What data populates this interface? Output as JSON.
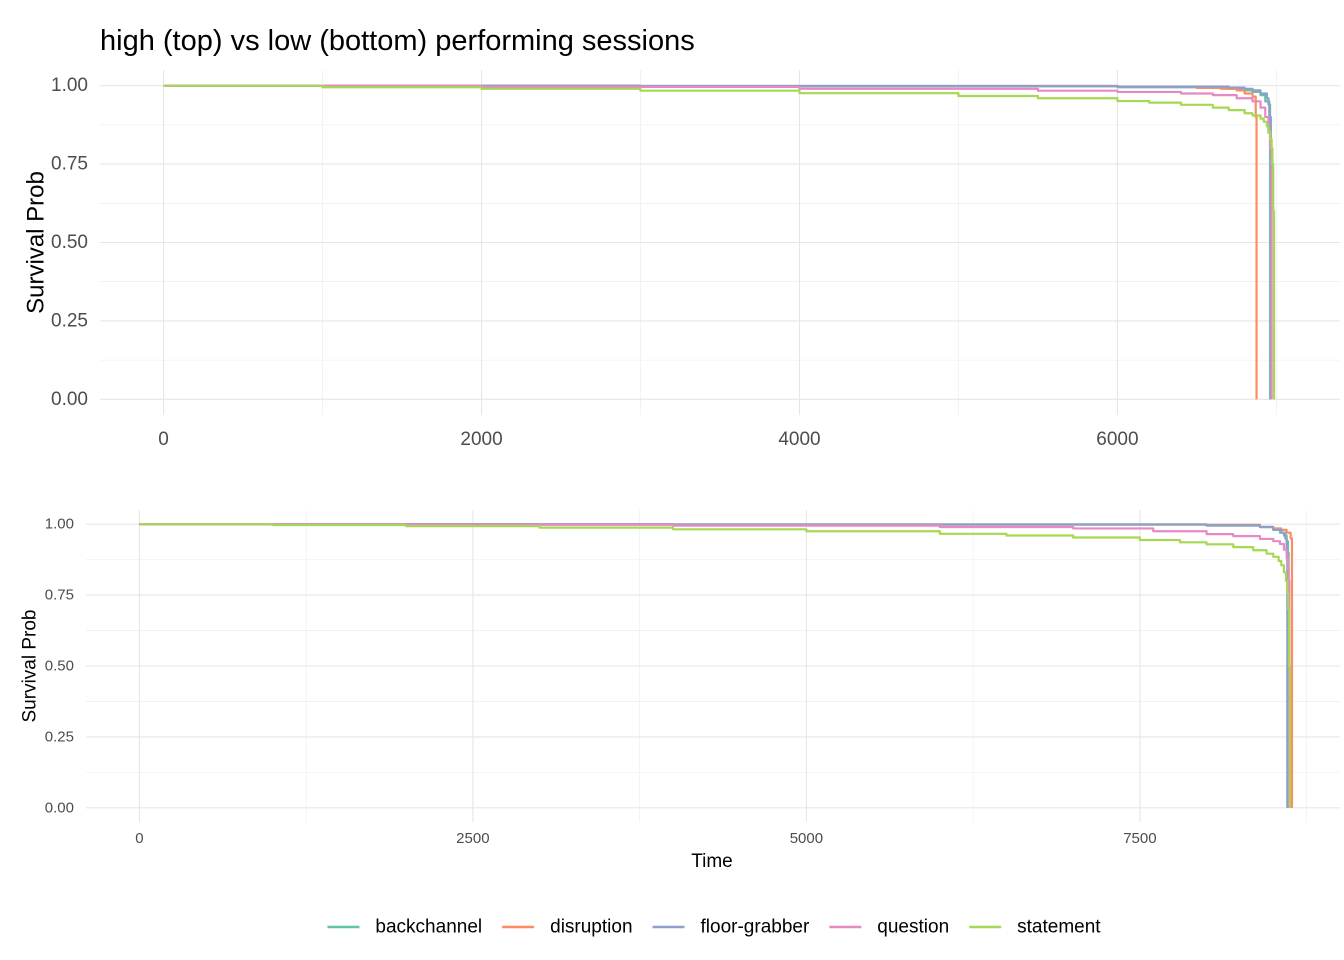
{
  "title": "high (top) vs low (bottom) performing sessions",
  "legend": {
    "items": [
      {
        "label": "backchannel",
        "color": "#66C2A5"
      },
      {
        "label": "disruption",
        "color": "#FC8D62"
      },
      {
        "label": "floor-grabber",
        "color": "#8DA0CB"
      },
      {
        "label": "question",
        "color": "#E78AC3"
      },
      {
        "label": "statement",
        "color": "#A6D854"
      }
    ]
  },
  "chart_data": [
    {
      "type": "line",
      "panel": "top",
      "xlabel": "",
      "ylabel": "Survival Prob",
      "xlim": [
        -400,
        7400
      ],
      "ylim": [
        -0.05,
        1.05
      ],
      "x_ticks": [
        0,
        2000,
        4000,
        6000
      ],
      "x_tick_labels": [
        "0",
        "2000",
        "4000",
        "6000"
      ],
      "y_ticks": [
        0,
        0.25,
        0.5,
        0.75,
        1.0
      ],
      "y_tick_labels": [
        "0.00",
        "0.25",
        "0.50",
        "0.75",
        "1.00"
      ],
      "grid": true,
      "step": true,
      "series": [
        {
          "name": "backchannel",
          "color": "#66C2A5",
          "x": [
            0,
            3000,
            6000,
            6650,
            6700,
            6800,
            6850,
            6900,
            6930,
            6955,
            6960
          ],
          "y": [
            1.0,
            0.998,
            0.995,
            0.992,
            0.99,
            0.985,
            0.98,
            0.97,
            0.95,
            0.9,
            0.0
          ]
        },
        {
          "name": "disruption",
          "color": "#FC8D62",
          "x": [
            0,
            3000,
            6000,
            6500,
            6650,
            6750,
            6800,
            6850,
            6870,
            6875
          ],
          "y": [
            1.0,
            0.999,
            0.997,
            0.993,
            0.99,
            0.985,
            0.975,
            0.965,
            0.9,
            0.0
          ]
        },
        {
          "name": "floor-grabber",
          "color": "#8DA0CB",
          "x": [
            0,
            3000,
            6000,
            6700,
            6800,
            6850,
            6900,
            6940,
            6950,
            6960,
            6965
          ],
          "y": [
            1.0,
            0.999,
            0.997,
            0.994,
            0.99,
            0.985,
            0.975,
            0.96,
            0.94,
            0.9,
            0.0
          ]
        },
        {
          "name": "question",
          "color": "#E78AC3",
          "x": [
            0,
            2000,
            4000,
            5500,
            6000,
            6400,
            6600,
            6750,
            6850,
            6900,
            6930,
            6950,
            6960,
            6970
          ],
          "y": [
            1.0,
            0.996,
            0.99,
            0.984,
            0.98,
            0.975,
            0.97,
            0.96,
            0.95,
            0.93,
            0.9,
            0.85,
            0.8,
            0.0
          ]
        },
        {
          "name": "statement",
          "color": "#A6D854",
          "x": [
            0,
            1000,
            2000,
            3000,
            4000,
            5000,
            5500,
            6000,
            6200,
            6400,
            6600,
            6700,
            6800,
            6850,
            6900,
            6920,
            6940,
            6950,
            6960,
            6970,
            6975,
            6980,
            6985
          ],
          "y": [
            1.0,
            0.995,
            0.99,
            0.984,
            0.976,
            0.967,
            0.96,
            0.951,
            0.946,
            0.939,
            0.93,
            0.922,
            0.912,
            0.905,
            0.895,
            0.885,
            0.87,
            0.855,
            0.83,
            0.8,
            0.75,
            0.6,
            0.0
          ]
        }
      ]
    },
    {
      "type": "line",
      "panel": "bottom",
      "xlabel": "Time",
      "ylabel": "Survival Prob",
      "xlim": [
        -400,
        9000
      ],
      "ylim": [
        -0.05,
        1.05
      ],
      "x_ticks": [
        0,
        2500,
        5000,
        7500
      ],
      "x_tick_labels": [
        "0",
        "2500",
        "5000",
        "7500"
      ],
      "y_ticks": [
        0,
        0.25,
        0.5,
        0.75,
        1.0
      ],
      "y_tick_labels": [
        "0.00",
        "0.25",
        "0.50",
        "0.75",
        "1.00"
      ],
      "grid": true,
      "step": true,
      "series": [
        {
          "name": "backchannel",
          "color": "#66C2A5",
          "x": [
            0,
            4000,
            8000,
            8400,
            8500,
            8550,
            8580,
            8600,
            8610,
            8615
          ],
          "y": [
            1.0,
            0.999,
            0.995,
            0.99,
            0.98,
            0.97,
            0.96,
            0.94,
            0.9,
            0.0
          ]
        },
        {
          "name": "disruption",
          "color": "#FC8D62",
          "x": [
            0,
            4000,
            8000,
            8400,
            8500,
            8560,
            8600,
            8630,
            8640
          ],
          "y": [
            1.0,
            0.999,
            0.998,
            0.99,
            0.985,
            0.98,
            0.97,
            0.95,
            0.0
          ]
        },
        {
          "name": "floor-grabber",
          "color": "#8DA0CB",
          "x": [
            0,
            4000,
            8000,
            8400,
            8500,
            8560,
            8590,
            8600,
            8605
          ],
          "y": [
            1.0,
            0.999,
            0.996,
            0.99,
            0.98,
            0.97,
            0.95,
            0.9,
            0.0
          ]
        },
        {
          "name": "question",
          "color": "#E78AC3",
          "x": [
            0,
            2000,
            4000,
            6000,
            7000,
            7600,
            8000,
            8200,
            8400,
            8500,
            8550,
            8580,
            8600,
            8610,
            8615,
            8620
          ],
          "y": [
            1.0,
            0.998,
            0.995,
            0.99,
            0.985,
            0.975,
            0.965,
            0.958,
            0.948,
            0.94,
            0.93,
            0.91,
            0.88,
            0.84,
            0.8,
            0.0
          ]
        },
        {
          "name": "statement",
          "color": "#A6D854",
          "x": [
            0,
            1000,
            2000,
            3000,
            4000,
            5000,
            6000,
            6500,
            7000,
            7500,
            7800,
            8000,
            8200,
            8350,
            8450,
            8500,
            8540,
            8560,
            8580,
            8595,
            8605,
            8612,
            8618,
            8625
          ],
          "y": [
            1.0,
            0.997,
            0.993,
            0.988,
            0.982,
            0.975,
            0.966,
            0.96,
            0.953,
            0.944,
            0.936,
            0.929,
            0.919,
            0.908,
            0.896,
            0.885,
            0.87,
            0.855,
            0.83,
            0.8,
            0.76,
            0.7,
            0.5,
            0.0
          ]
        }
      ]
    }
  ]
}
